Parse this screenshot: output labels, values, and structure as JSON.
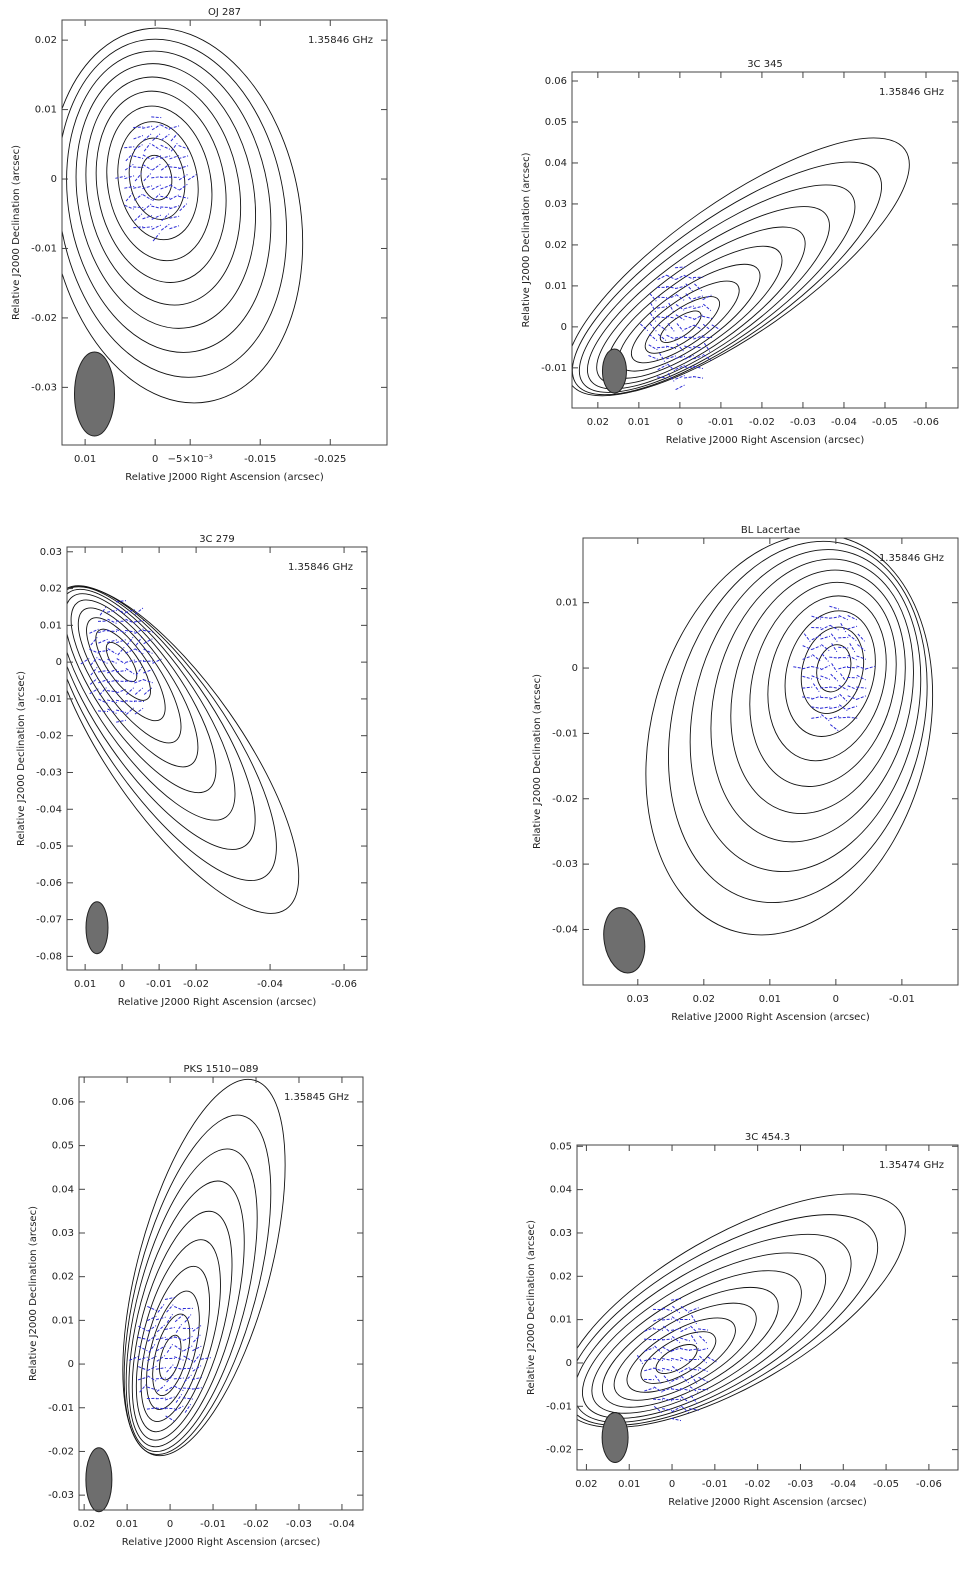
{
  "chart_data": [
    {
      "type": "contour",
      "title": "OJ 287",
      "annotation": "1.35846 GHz",
      "xlabel": "Relative J2000 Right Ascension (arcsec)",
      "ylabel": "Relative J2000 Declination (arcsec)",
      "xlim": [
        0.0133,
        -0.0331
      ],
      "ylim": [
        -0.0383,
        0.0229
      ],
      "xticks": [
        0.01,
        0,
        {
          "value": -0.005,
          "label": "−5×10⁻³"
        },
        -0.015,
        -0.025
      ],
      "yticks": [
        -0.03,
        -0.02,
        -0.01,
        0,
        0.01,
        0.02
      ]
    },
    {
      "type": "contour",
      "title": "3C 345",
      "annotation": "1.35846 GHz",
      "xlabel": "Relative J2000 Right Ascension (arcsec)",
      "ylabel": "Relative J2000 Declination (arcsec)",
      "xlim": [
        0.0263,
        -0.0678
      ],
      "ylim": [
        -0.0198,
        0.0622
      ],
      "xticks": [
        0.02,
        0.01,
        0,
        -0.01,
        -0.02,
        -0.03,
        -0.04,
        -0.05,
        -0.06
      ],
      "yticks": [
        -0.01,
        0,
        0.01,
        0.02,
        0.03,
        0.04,
        0.05,
        0.06
      ]
    },
    {
      "type": "contour",
      "title": "3C 279",
      "annotation": "1.35846 GHz",
      "xlabel": "Relative J2000 Right Ascension (arcsec)",
      "ylabel": "Relative J2000 Declination (arcsec)",
      "xlim": [
        0.0149,
        -0.0662
      ],
      "ylim": [
        -0.0837,
        0.0313
      ],
      "xticks": [
        0.01,
        0,
        -0.01,
        -0.02,
        -0.04,
        -0.06
      ],
      "yticks": [
        -0.08,
        -0.07,
        -0.06,
        -0.05,
        -0.04,
        -0.03,
        -0.02,
        -0.01,
        0,
        0.01,
        0.02,
        0.03
      ]
    },
    {
      "type": "contour",
      "title": "BL Lacertae",
      "annotation": "1.35846 GHz",
      "xlabel": "Relative J2000 Right Ascension (arcsec)",
      "ylabel": "Relative J2000 Declination (arcsec)",
      "xlim": [
        0.0383,
        -0.0185
      ],
      "ylim": [
        -0.0485,
        0.0199
      ],
      "xticks": [
        0.03,
        0.02,
        0.01,
        0,
        -0.01
      ],
      "yticks": [
        -0.04,
        -0.03,
        -0.02,
        -0.01,
        0,
        0.01
      ]
    },
    {
      "type": "contour",
      "title": "PKS 1510−089",
      "annotation": "1.35845 GHz",
      "xlabel": "Relative J2000 Right Ascension (arcsec)",
      "ylabel": "Relative J2000 Declination (arcsec)",
      "xlim": [
        0.0212,
        -0.0449
      ],
      "ylim": [
        -0.0334,
        0.0657
      ],
      "xticks": [
        0.02,
        0.01,
        0,
        -0.01,
        -0.02,
        -0.03,
        -0.04
      ],
      "yticks": [
        -0.03,
        -0.02,
        -0.01,
        0,
        0.01,
        0.02,
        0.03,
        0.04,
        0.05,
        0.06
      ]
    },
    {
      "type": "contour",
      "title": "3C 454.3",
      "annotation": "1.35474 GHz",
      "xlabel": "Relative J2000 Right Ascension (arcsec)",
      "ylabel": "Relative J2000 Declination (arcsec)",
      "xlim": [
        0.0222,
        -0.0668
      ],
      "ylim": [
        -0.0247,
        0.0503
      ],
      "xticks": [
        0.02,
        0.01,
        0,
        -0.01,
        -0.02,
        -0.03,
        -0.04,
        -0.05,
        -0.06
      ],
      "yticks": [
        -0.02,
        -0.01,
        0,
        0.01,
        0.02,
        0.03,
        0.04,
        0.05
      ]
    }
  ]
}
